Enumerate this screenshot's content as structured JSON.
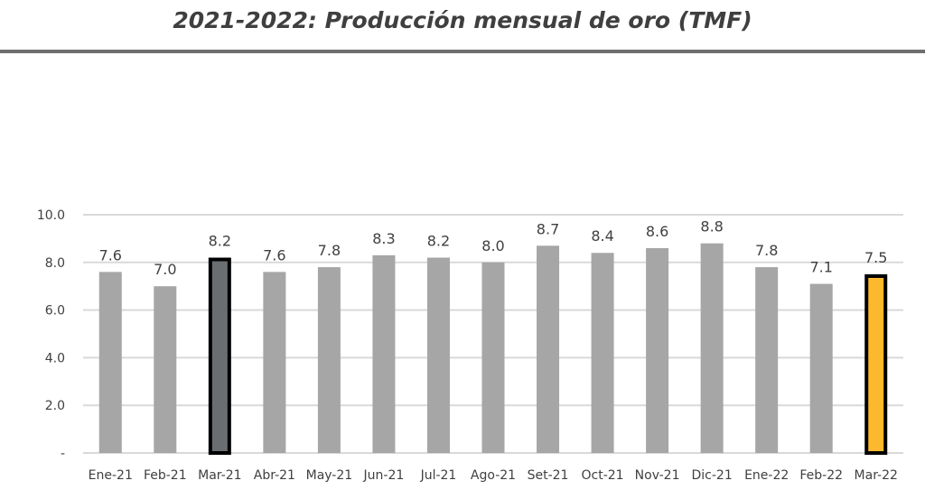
{
  "chart_data": {
    "type": "bar",
    "title": "2021-2022: Producción mensual de oro (TMF)",
    "categories": [
      "Ene-21",
      "Feb-21",
      "Mar-21",
      "Abr-21",
      "May-21",
      "Jun-21",
      "Jul-21",
      "Ago-21",
      "Set-21",
      "Oct-21",
      "Nov-21",
      "Dic-21",
      "Ene-22",
      "Feb-22",
      "Mar-22"
    ],
    "values": [
      7.6,
      7.0,
      8.2,
      7.6,
      7.8,
      8.3,
      8.2,
      8.0,
      8.7,
      8.4,
      8.6,
      8.8,
      7.8,
      7.1,
      7.5
    ],
    "value_labels": [
      "7.6",
      "7.0",
      "8.2",
      "7.6",
      "7.8",
      "8.3",
      "8.2",
      "8.0",
      "8.7",
      "8.4",
      "8.6",
      "8.8",
      "7.8",
      "7.1",
      "7.5"
    ],
    "ylim": [
      0,
      10
    ],
    "yticks": [
      0,
      2,
      4,
      6,
      8,
      10
    ],
    "ytick_labels": [
      "-",
      "2.0",
      "4.0",
      "6.0",
      "8.0",
      "10.0"
    ],
    "grid": true,
    "colors": {
      "default_bar": "#a6a6a6",
      "bars": {
        "Mar-21": {
          "fill": "#6b6e70",
          "stroke": "#000000"
        },
        "Mar-22": {
          "fill": "#fdb92d",
          "stroke": "#000000"
        }
      },
      "gridline": "#d9d9d9",
      "text": "#404040"
    }
  }
}
